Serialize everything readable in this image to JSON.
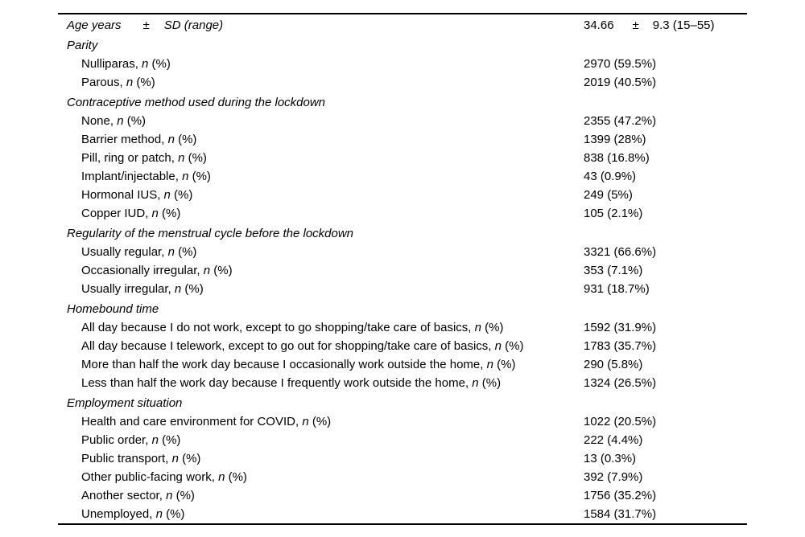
{
  "page": {
    "background": "#ffffff",
    "text_color": "#000000",
    "rule_color": "#000000"
  },
  "table": {
    "item_suffix": {
      "comma": ", ",
      "n": "n",
      "pct": " (%)"
    },
    "rows": [
      {
        "type": "stat",
        "parts": [
          "Age years",
          "±",
          "SD (range)"
        ],
        "value_parts": [
          "34.66",
          "±",
          "9.3 (15–55)"
        ]
      },
      {
        "type": "section",
        "label": "Parity"
      },
      {
        "type": "item",
        "label": "Nulliparas",
        "value": "2970 (59.5%)"
      },
      {
        "type": "item",
        "label": "Parous",
        "value": "2019 (40.5%)"
      },
      {
        "type": "section",
        "label": "Contraceptive method used during the lockdown"
      },
      {
        "type": "item",
        "label": "None",
        "value": "2355 (47.2%)"
      },
      {
        "type": "item",
        "label": "Barrier method",
        "value": "1399 (28%)"
      },
      {
        "type": "item",
        "label": "Pill, ring or patch",
        "value": "838 (16.8%)"
      },
      {
        "type": "item",
        "label": "Implant/injectable",
        "value": "43 (0.9%)"
      },
      {
        "type": "item",
        "label": "Hormonal IUS",
        "value": "249 (5%)"
      },
      {
        "type": "item",
        "label": "Copper IUD",
        "value": "105 (2.1%)"
      },
      {
        "type": "section",
        "label": "Regularity of the menstrual cycle before the lockdown"
      },
      {
        "type": "item",
        "label": "Usually regular",
        "value": "3321 (66.6%)"
      },
      {
        "type": "item",
        "label": "Occasionally irregular",
        "value": "353 (7.1%)"
      },
      {
        "type": "item",
        "label": "Usually irregular",
        "value": "931 (18.7%)"
      },
      {
        "type": "section",
        "label": "Homebound time"
      },
      {
        "type": "item",
        "label": "All day because I do not work, except to go shopping/take care of basics",
        "value": "1592 (31.9%)"
      },
      {
        "type": "item",
        "label": "All day because I telework, except to go out for shopping/take care of basics",
        "value": "1783 (35.7%)"
      },
      {
        "type": "item",
        "label": "More than half the work day because I occasionally work outside the home",
        "value": "290 (5.8%)"
      },
      {
        "type": "item",
        "label": "Less than half the work day because I frequently work outside the home",
        "value": "1324 (26.5%)"
      },
      {
        "type": "section",
        "label": "Employment situation"
      },
      {
        "type": "item",
        "label": "Health and care environment for COVID",
        "value": "1022 (20.5%)"
      },
      {
        "type": "item",
        "label": "Public order",
        "value": "222 (4.4%)"
      },
      {
        "type": "item",
        "label": "Public transport",
        "value": "13 (0.3%)"
      },
      {
        "type": "item",
        "label": "Other public-facing work",
        "value": "392 (7.9%)"
      },
      {
        "type": "item",
        "label": "Another sector",
        "value": "1756 (35.2%)"
      },
      {
        "type": "item",
        "label": "Unemployed",
        "value": "1584 (31.7%)"
      }
    ]
  }
}
